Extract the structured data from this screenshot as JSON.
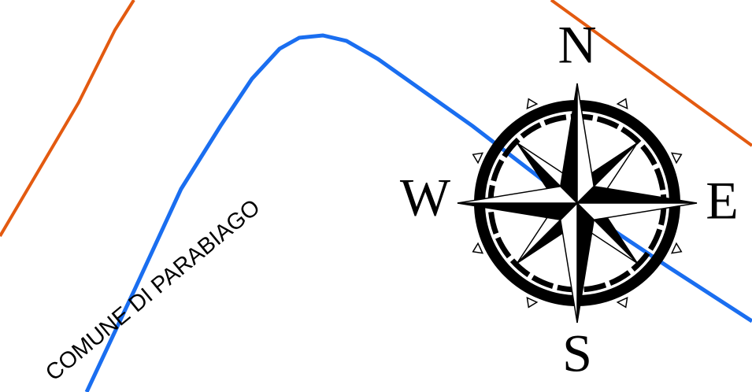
{
  "map": {
    "place_label": "COMUNE DI PARABIAGO",
    "compass": {
      "north": "N",
      "west": "W",
      "east": "E",
      "south": "S"
    }
  }
}
